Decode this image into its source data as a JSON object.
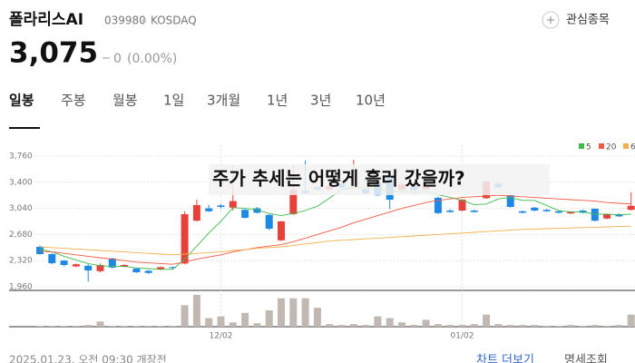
{
  "header": {
    "name": "폴라리스AI",
    "code": "039980",
    "market": "KOSDAQ",
    "watch": "관심종목",
    "price": "3,075",
    "change": "0",
    "change_pct": "(0.00%)"
  },
  "tabs": [
    "일봉",
    "주봉",
    "월봉",
    "1일",
    "3개월",
    "1년",
    "3년",
    "10년"
  ],
  "overlay": "주가 추세는 어떻게 흘러 갔을까?",
  "footer": {
    "time": "2025.01.23. 오전 09:30 개장전",
    "more": "차트 더보기",
    "detail": "명세조회"
  },
  "chart_data": {
    "type": "candlestick",
    "categories": [
      null,
      null,
      null,
      null,
      null,
      null,
      null,
      null,
      null,
      null,
      null,
      null,
      null,
      null,
      null,
      "12/02",
      null,
      null,
      null,
      null,
      null,
      null,
      null,
      null,
      null,
      null,
      null,
      null,
      null,
      null,
      null,
      null,
      null,
      null,
      null,
      "01/02",
      null,
      null,
      null,
      null,
      null,
      null,
      null,
      null,
      null,
      null,
      null,
      null,
      null,
      null
    ],
    "open": [
      2510,
      2410,
      2320,
      2240,
      2250,
      2175,
      2350,
      2240,
      2210,
      2180,
      2200,
      2230,
      2280,
      2870,
      3040,
      3080,
      3050,
      3020,
      3040,
      2950,
      2600,
      2960,
      3280,
      3330,
      3300,
      3380,
      3430,
      3300,
      3400,
      3490,
      3300,
      3350,
      3300,
      3185,
      3010,
      3010,
      3010,
      3180,
      3380,
      3220,
      3000,
      3050,
      3020,
      3000,
      2970,
      3010,
      3035,
      2900,
      2960,
      3020
    ],
    "high": [
      2530,
      2420,
      2330,
      2280,
      2270,
      2280,
      2360,
      2270,
      2220,
      2190,
      2240,
      2240,
      3000,
      3160,
      3090,
      3100,
      3620,
      3030,
      3060,
      2960,
      2870,
      3635,
      3700,
      3340,
      3370,
      3400,
      3710,
      3310,
      3410,
      3500,
      3390,
      3360,
      3350,
      3200,
      3030,
      3170,
      3020,
      3420,
      3400,
      3230,
      3010,
      3060,
      3030,
      3010,
      3000,
      3020,
      3040,
      2970,
      2970,
      3260
    ],
    "low": [
      2400,
      2270,
      2240,
      2230,
      2035,
      2160,
      2210,
      2230,
      2150,
      2140,
      2190,
      2200,
      2270,
      2860,
      2990,
      3040,
      3010,
      2900,
      2970,
      2740,
      2590,
      2950,
      3240,
      3290,
      3290,
      3320,
      3410,
      3240,
      3210,
      3030,
      3290,
      3280,
      3290,
      2960,
      2980,
      3000,
      2980,
      3170,
      3320,
      3050,
      2970,
      3000,
      2990,
      2970,
      2960,
      2970,
      2860,
      2890,
      2920,
      3010
    ],
    "close": [
      2410,
      2285,
      2260,
      2270,
      2185,
      2260,
      2225,
      2260,
      2160,
      2150,
      2230,
      2220,
      2960,
      3085,
      3000,
      3060,
      3140,
      2910,
      2980,
      2760,
      2860,
      3290,
      3250,
      3300,
      3350,
      3330,
      3440,
      3250,
      3220,
      3160,
      3370,
      3290,
      3340,
      2975,
      2990,
      3160,
      2990,
      3410,
      3330,
      3060,
      2980,
      3010,
      3000,
      2980,
      2990,
      2980,
      2870,
      2960,
      2930,
      3075
    ],
    "volume": [
      1,
      1,
      1,
      1,
      2,
      6,
      1,
      1,
      1,
      1,
      1,
      1,
      25,
      37,
      10,
      12,
      5,
      16,
      4,
      19,
      33,
      33,
      33,
      22,
      3,
      2,
      3,
      2,
      12,
      10,
      5,
      2,
      8,
      3,
      2,
      2,
      3,
      14,
      3,
      2,
      2,
      2,
      1,
      1,
      2,
      1,
      2,
      1,
      2,
      14
    ],
    "volume_lim": [
      0,
      40
    ],
    "ma": [
      {
        "name": "5",
        "color": "#3dbb4c",
        "values": [
          2480,
          2440,
          2380,
          2330,
          2280,
          2250,
          2240,
          2240,
          2220,
          2210,
          2200,
          2200,
          2340,
          2520,
          2700,
          2860,
          3050,
          3040,
          3020,
          2970,
          2940,
          2970,
          3010,
          3070,
          3180,
          3300,
          3330,
          3320,
          3310,
          3270,
          3280,
          3260,
          3270,
          3230,
          3190,
          3150,
          3090,
          3100,
          3170,
          3190,
          3150,
          3150,
          3080,
          3010,
          2990,
          2990,
          2960,
          2960,
          2950,
          2960
        ]
      },
      {
        "name": "20",
        "color": "#ee5a46",
        "values": [
          2450,
          2440,
          2420,
          2400,
          2380,
          2360,
          2340,
          2320,
          2300,
          2290,
          2280,
          2270,
          2300,
          2340,
          2370,
          2400,
          2440,
          2470,
          2500,
          2520,
          2540,
          2580,
          2630,
          2680,
          2730,
          2780,
          2840,
          2890,
          2940,
          2990,
          3040,
          3080,
          3120,
          3150,
          3170,
          3190,
          3200,
          3210,
          3220,
          3210,
          3200,
          3190,
          3180,
          3170,
          3160,
          3150,
          3140,
          3120,
          3110,
          3100
        ]
      },
      {
        "name": "60",
        "color": "#f2b04a",
        "values": [
          2510,
          2500,
          2490,
          2480,
          2470,
          2460,
          2450,
          2440,
          2430,
          2420,
          2410,
          2400,
          2410,
          2420,
          2430,
          2440,
          2460,
          2470,
          2490,
          2500,
          2510,
          2530,
          2550,
          2570,
          2590,
          2600,
          2610,
          2620,
          2630,
          2640,
          2650,
          2660,
          2670,
          2680,
          2690,
          2700,
          2710,
          2720,
          2730,
          2740,
          2750,
          2755,
          2760,
          2765,
          2770,
          2775,
          2780,
          2785,
          2790,
          2795
        ]
      }
    ],
    "up_color": "#e8413c",
    "down_color": "#1e88e5",
    "volume_color": "#c2b8b2",
    "ylim": [
      1910,
      3910
    ],
    "yticks": [
      {
        "value": 1960,
        "label": "1,960"
      },
      {
        "value": 2320,
        "label": "2,320"
      },
      {
        "value": 2680,
        "label": "2,680"
      },
      {
        "value": 3040,
        "label": "3,040"
      },
      {
        "value": 3400,
        "label": "3,400"
      },
      {
        "value": 3760,
        "label": "3,760"
      }
    ],
    "grid": true,
    "legend": "top-right"
  }
}
